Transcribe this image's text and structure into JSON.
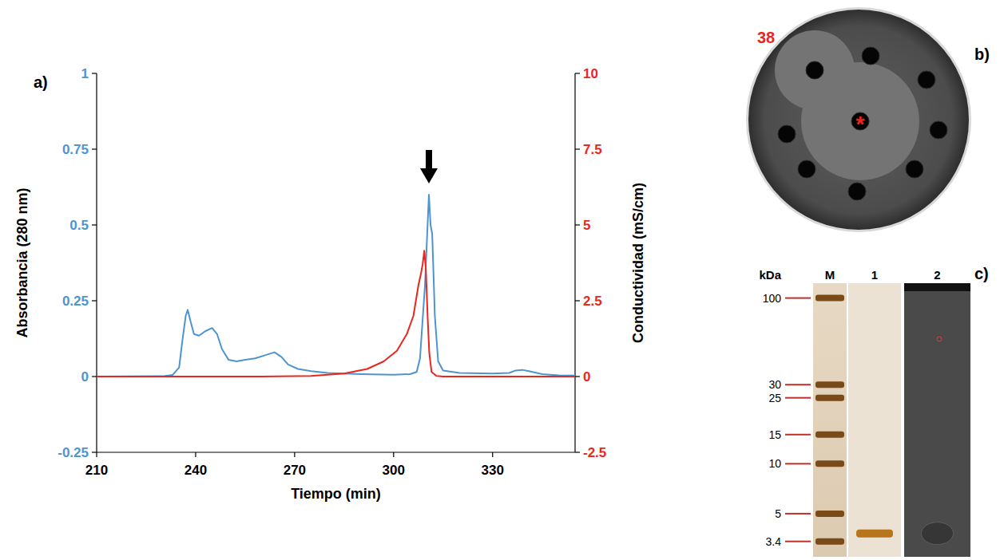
{
  "chart_data": [
    {
      "type": "line",
      "letter": "a)",
      "xlabel": "Tiempo (min)",
      "ylabel": "Absorbancia (280 nm)",
      "y2label": "Conductividad (mS/cm)",
      "xlim": [
        210,
        355
      ],
      "xticks": [
        210,
        240,
        270,
        300,
        330
      ],
      "ylim": [
        -0.25,
        1
      ],
      "yticks": [
        -0.25,
        0,
        0.25,
        0.5,
        0.75,
        1
      ],
      "y2lim": [
        -2.5,
        10
      ],
      "y2ticks": [
        -2.5,
        0,
        2.5,
        5,
        7.5,
        10
      ],
      "series": [
        {
          "color": "#4e94d0",
          "axis": "y",
          "x": [
            210,
            230,
            233,
            235,
            236,
            237,
            237.6,
            238.5,
            239.5,
            241,
            243,
            245,
            246.5,
            248,
            250,
            252.4,
            255,
            258,
            261,
            263.9,
            266,
            268,
            271,
            275,
            280,
            290,
            300,
            305,
            307,
            308,
            309.5,
            310.7,
            311.2,
            311.7,
            312.5,
            313.5,
            315,
            320,
            330,
            335,
            337,
            339,
            341,
            345,
            350,
            355
          ],
          "values": [
            0,
            0.001,
            0.005,
            0.03,
            0.12,
            0.2,
            0.22,
            0.18,
            0.14,
            0.135,
            0.15,
            0.16,
            0.14,
            0.09,
            0.055,
            0.05,
            0.055,
            0.06,
            0.07,
            0.08,
            0.065,
            0.04,
            0.025,
            0.018,
            0.012,
            0.008,
            0.006,
            0.008,
            0.015,
            0.06,
            0.3,
            0.6,
            0.5,
            0.47,
            0.2,
            0.05,
            0.02,
            0.012,
            0.01,
            0.012,
            0.02,
            0.022,
            0.018,
            0.008,
            0.004,
            0.003
          ]
        },
        {
          "color": "#e8271f",
          "axis": "y2",
          "x": [
            210,
            260,
            275,
            285,
            292,
            297,
            301,
            304,
            306,
            307.5,
            308.3,
            308.8,
            309.3,
            309.8,
            310.3,
            310.8,
            311.5,
            313,
            315,
            355
          ],
          "values": [
            0,
            0,
            0.02,
            0.1,
            0.25,
            0.5,
            0.85,
            1.4,
            2.0,
            3.0,
            3.4,
            3.7,
            4.15,
            3.5,
            2.0,
            0.8,
            0.15,
            0.02,
            0,
            0
          ]
        }
      ]
    },
    {
      "type": "gel",
      "letter": "c)",
      "ylabel": "kDa",
      "categories": [
        "M",
        "1",
        "2"
      ],
      "log": "y",
      "ylim": [
        3,
        110
      ],
      "yticks": [
        100,
        30,
        25,
        15,
        10,
        5,
        3.4
      ],
      "values": [
        null,
        3.8,
        3.8
      ]
    }
  ],
  "plate": {
    "letter": "b)",
    "label": "38",
    "center_label": "*"
  }
}
